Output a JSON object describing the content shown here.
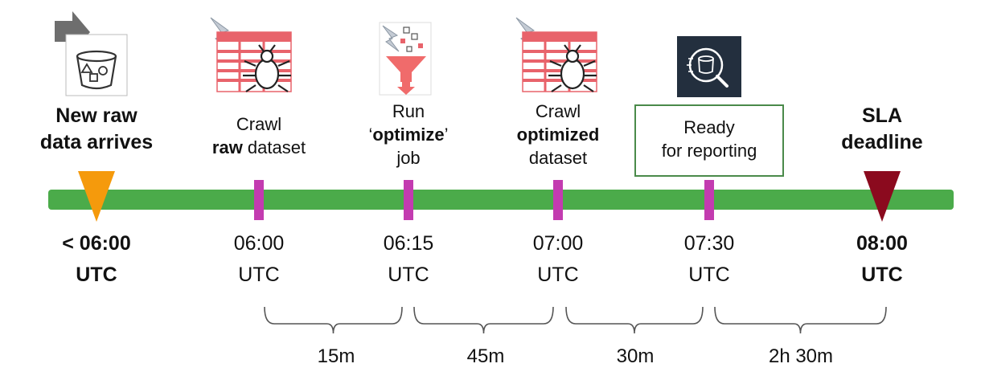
{
  "milestones": [
    {
      "label_lines": [
        [
          {
            "t": "New raw",
            "b": true
          }
        ],
        [
          {
            "t": "data arrives",
            "b": true
          }
        ]
      ],
      "time": [
        "< 06:00",
        "UTC"
      ],
      "time_bold": true,
      "icon": "s3-bucket-arrow-icon",
      "marker": "arrival-triangle",
      "marker_color": "#f59a0c"
    },
    {
      "label_lines": [
        [
          {
            "t": "Crawl",
            "b": false
          }
        ],
        [
          {
            "t": "raw",
            "b": true
          },
          {
            "t": " dataset",
            "b": false
          }
        ]
      ],
      "time": [
        "06:00",
        "UTC"
      ],
      "time_bold": false,
      "icon": "glue-crawler-icon",
      "marker": "tick"
    },
    {
      "label_lines": [
        [
          {
            "t": "Run",
            "b": false
          }
        ],
        [
          {
            "t": "‘",
            "b": false
          },
          {
            "t": "optimize",
            "b": true
          },
          {
            "t": "’",
            "b": false
          }
        ],
        [
          {
            "t": "job",
            "b": false
          }
        ]
      ],
      "time": [
        "06:15",
        "UTC"
      ],
      "time_bold": false,
      "icon": "glue-etl-funnel-icon",
      "marker": "tick"
    },
    {
      "label_lines": [
        [
          {
            "t": "Crawl",
            "b": false
          }
        ],
        [
          {
            "t": "optimized",
            "b": true
          }
        ],
        [
          {
            "t": "dataset",
            "b": false
          }
        ]
      ],
      "time": [
        "07:00",
        "UTC"
      ],
      "time_bold": false,
      "icon": "glue-crawler-icon",
      "marker": "tick"
    },
    {
      "label_lines": [
        [
          {
            "t": "Ready",
            "b": false
          }
        ],
        [
          {
            "t": "for reporting",
            "b": false
          }
        ]
      ],
      "time": [
        "07:30",
        "UTC"
      ],
      "time_bold": false,
      "icon": "athena-query-icon",
      "marker": "tick"
    },
    {
      "label_lines": [
        [
          {
            "t": "SLA",
            "b": true
          }
        ],
        [
          {
            "t": "deadline",
            "b": true
          }
        ]
      ],
      "time": [
        "08:00",
        "UTC"
      ],
      "time_bold": true,
      "icon": null,
      "marker": "deadline-triangle",
      "marker_color": "#8b0a1e"
    }
  ],
  "durations": [
    "15m",
    "45m",
    "30m",
    "2h 30m"
  ],
  "colors": {
    "timeline": "#4bab4a",
    "tick": "#c33bb0",
    "box_border": "#4a8a4a",
    "grid_red": "#e8636b",
    "bracket": "#555555"
  }
}
